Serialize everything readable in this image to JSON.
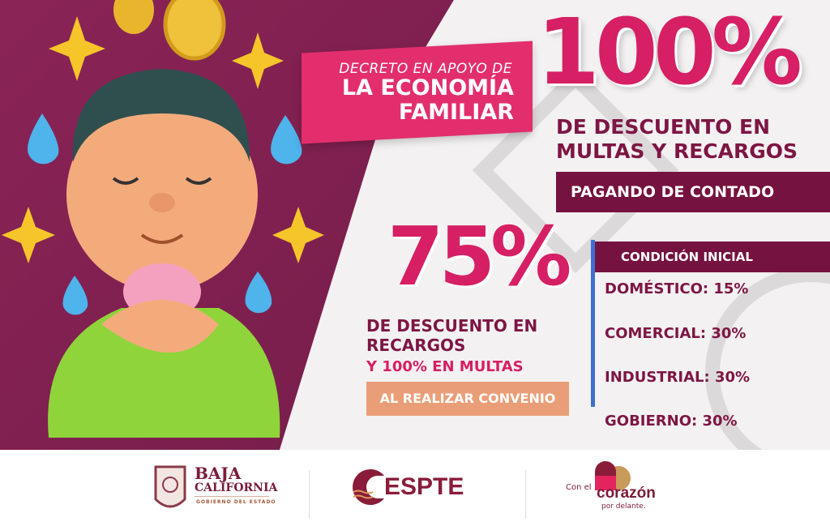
{
  "banner": {
    "line1": "DECRETO EN APOYO DE",
    "line2": "LA ECONOMÍA",
    "line3": "FAMILIAR"
  },
  "offer_contado": {
    "percent": "100%",
    "line1": "DE DESCUENTO EN",
    "line2": "MULTAS Y RECARGOS",
    "condition": "PAGANDO DE CONTADO"
  },
  "offer_convenio": {
    "percent": "75%",
    "line1": "DE DESCUENTO EN",
    "line2": "RECARGOS",
    "line3": "Y 100% EN MULTAS",
    "condition": "AL REALIZAR CONVENIO"
  },
  "conditions": {
    "title": "CONDICIÓN INICIAL",
    "items": [
      "DOMÉSTICO: 15%",
      "COMERCIAL: 30%",
      "INDUSTRIAL: 30%",
      "GOBIERNO: 30%"
    ]
  },
  "footer": {
    "baja": {
      "line1": "BAJA",
      "line2": "CALIFORNIA",
      "line3": "GOBIERNO DEL ESTADO"
    },
    "espte": {
      "name": "ESPTE"
    },
    "corazon": {
      "line1": "Con el",
      "line2": "corazón",
      "line3": "por delante."
    }
  },
  "colors": {
    "maroon": "#76123f",
    "pink": "#d61f64",
    "orange": "#ea9e77",
    "blue": "#3d6fd1"
  }
}
